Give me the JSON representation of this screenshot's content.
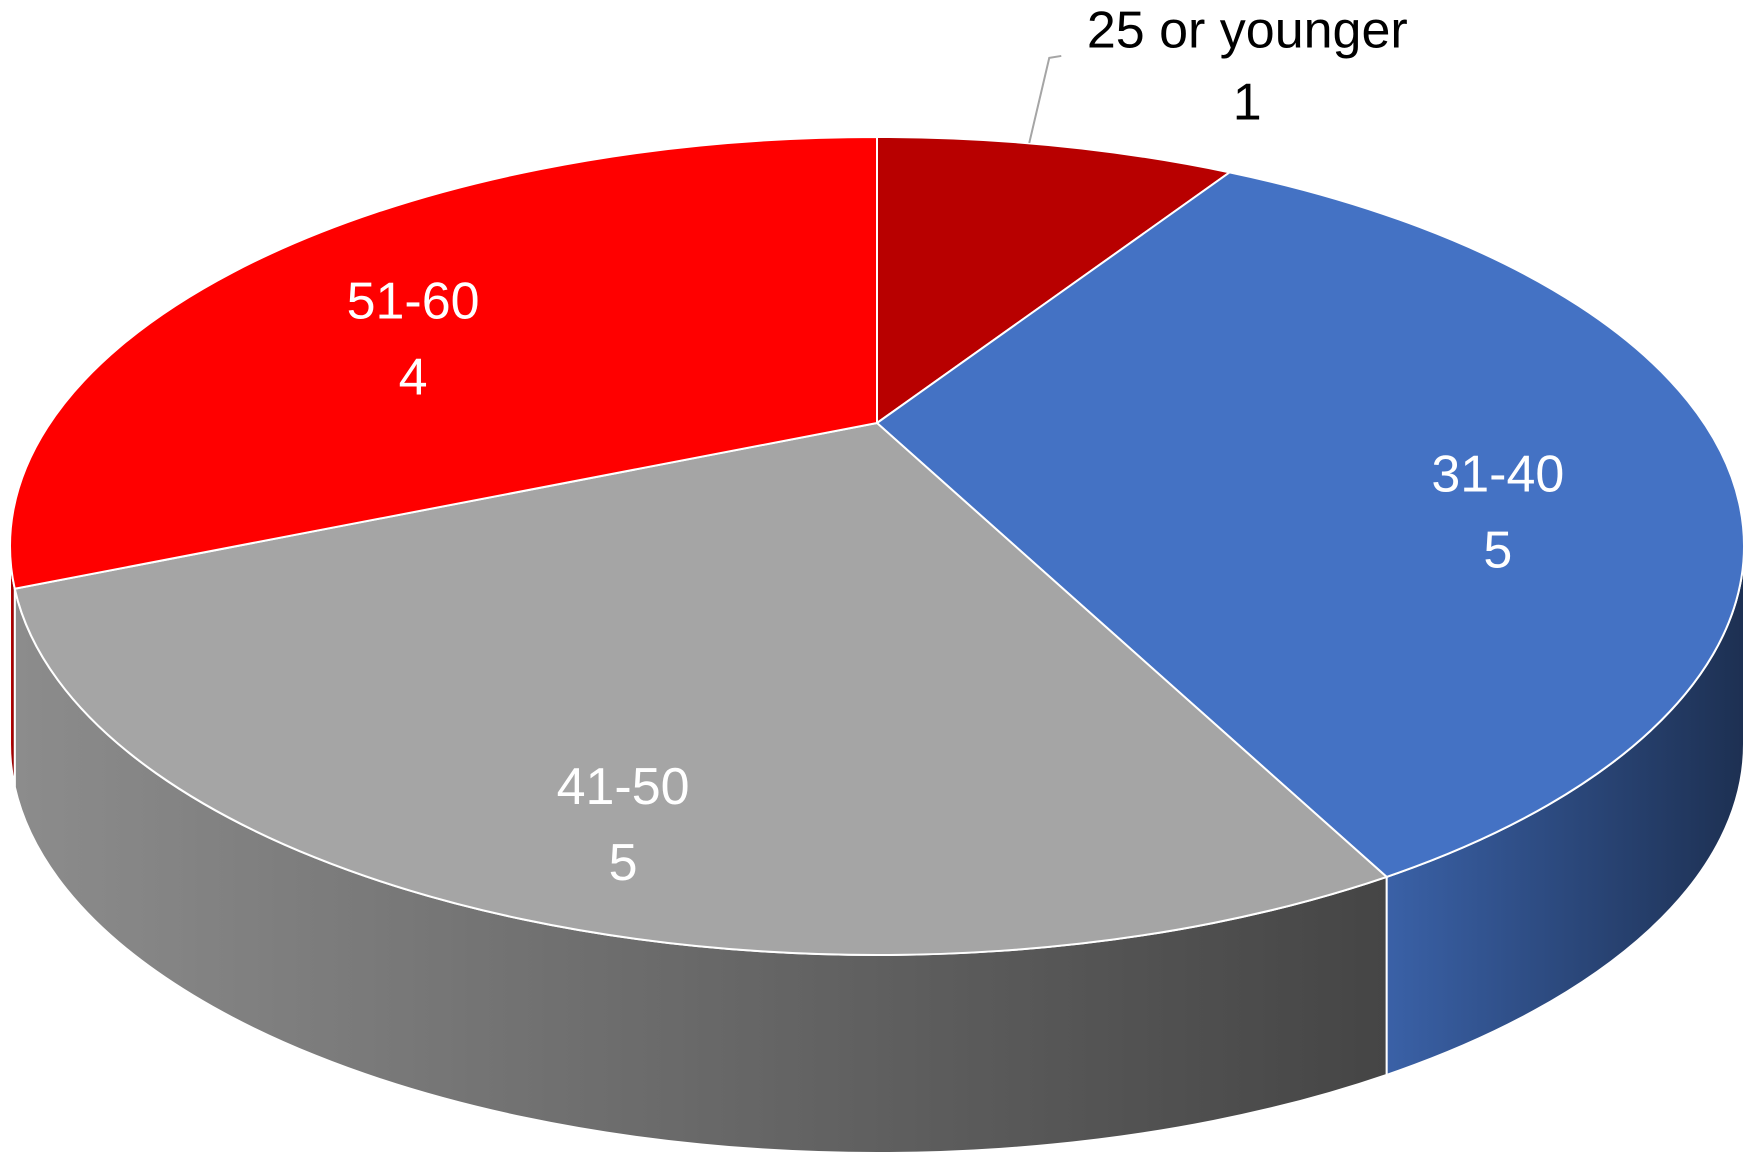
{
  "chart_data": {
    "type": "pie3d",
    "categories": [
      "25 or younger",
      "31-40",
      "41-50",
      "51-60"
    ],
    "values": [
      1,
      5,
      5,
      4
    ],
    "colors": [
      "#b80000",
      "#4472c4",
      "#a5a5a5",
      "#ff0000"
    ]
  }
}
